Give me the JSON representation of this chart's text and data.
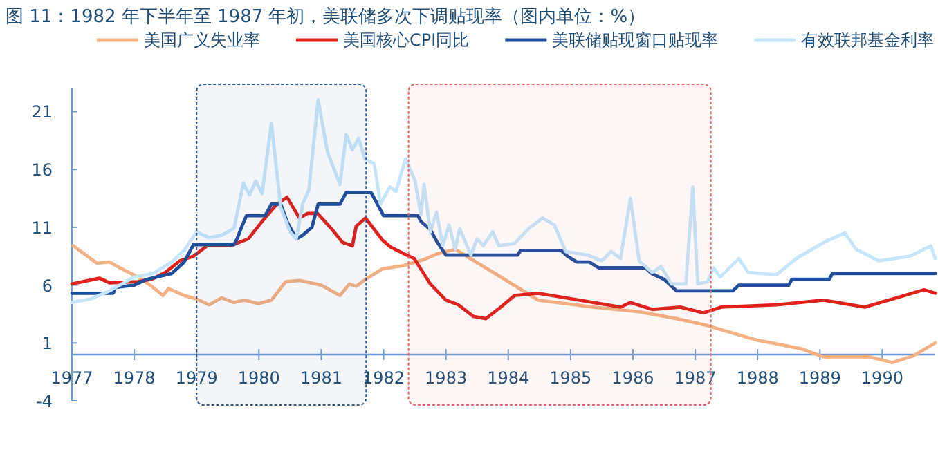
{
  "chart_data": {
    "type": "line",
    "title": "图 11：1982 年下半年至 1987 年初，美联储多次下调贴现率（图内单位：%）",
    "xlim": [
      1977,
      1990.85
    ],
    "xticks": [
      1977,
      1978,
      1979,
      1980,
      1981,
      1982,
      1983,
      1984,
      1985,
      1986,
      1987,
      1988,
      1989,
      1990
    ],
    "ylim": [
      -4,
      23
    ],
    "yticks": [
      -4,
      1,
      6,
      11,
      16,
      21
    ],
    "grid": false,
    "legend": "top",
    "marker": "none",
    "line_style": "solid",
    "bands": [
      {
        "axis": "x",
        "from": 1979,
        "to": 1981.72,
        "color": "#2f5597"
      },
      {
        "axis": "x",
        "from": 1982.4,
        "to": 1987.25,
        "color": "#e06666"
      }
    ],
    "series": [
      {
        "name": "美国广义失业率",
        "color": "#f4b183",
        "x": [
          1977.02,
          1977.4,
          1977.6,
          1977.84,
          1978.06,
          1978.28,
          1978.46,
          1978.55,
          1978.8,
          1979.0,
          1979.2,
          1979.4,
          1979.6,
          1979.77,
          1979.99,
          1980.2,
          1980.43,
          1980.65,
          1981.0,
          1981.3,
          1981.45,
          1981.56,
          1981.71,
          1981.98,
          1982.33,
          1982.64,
          1982.86,
          1983.15,
          1983.88,
          1984.48,
          1985.36,
          1986.1,
          1986.7,
          1987.2,
          1987.95,
          1988.7,
          1989.06,
          1989.8,
          1990.16,
          1990.5,
          1990.85
        ],
        "values": [
          9.4,
          7.9,
          8.0,
          7.3,
          6.7,
          5.9,
          5.1,
          5.7,
          5.1,
          4.8,
          4.3,
          4.9,
          4.5,
          4.7,
          4.4,
          4.7,
          6.3,
          6.4,
          6.0,
          5.1,
          6.1,
          5.9,
          6.5,
          7.4,
          7.7,
          8.2,
          8.7,
          9.1,
          6.7,
          4.7,
          4.1,
          3.7,
          3.1,
          2.5,
          1.3,
          0.5,
          -0.2,
          -0.2,
          -0.7,
          -0.1,
          1.0
        ]
      },
      {
        "name": "美国核心CPI同比",
        "color": "#e0201b",
        "x": [
          1977.0,
          1977.44,
          1977.6,
          1978.06,
          1978.28,
          1978.5,
          1978.73,
          1978.95,
          1979.17,
          1979.54,
          1979.83,
          1980.05,
          1980.27,
          1980.45,
          1980.65,
          1980.78,
          1980.94,
          1981.16,
          1981.34,
          1981.5,
          1981.56,
          1981.71,
          1981.98,
          1982.11,
          1982.33,
          1982.49,
          1982.75,
          1983.0,
          1983.2,
          1983.44,
          1983.64,
          1983.88,
          1984.1,
          1984.48,
          1984.92,
          1985.36,
          1985.8,
          1985.96,
          1986.31,
          1986.76,
          1987.13,
          1987.42,
          1988.3,
          1989.06,
          1989.72,
          1990.23,
          1990.67,
          1990.85
        ],
        "values": [
          6.1,
          6.6,
          6.2,
          6.3,
          6.5,
          7.1,
          8.1,
          8.5,
          9.4,
          9.4,
          10.0,
          11.5,
          12.9,
          13.6,
          11.8,
          12.2,
          12.2,
          10.9,
          9.7,
          9.4,
          11.1,
          11.8,
          9.9,
          9.3,
          8.7,
          8.3,
          6.1,
          4.7,
          4.3,
          3.3,
          3.1,
          4.1,
          5.1,
          5.3,
          4.9,
          4.5,
          4.1,
          4.5,
          3.9,
          4.1,
          3.6,
          4.1,
          4.3,
          4.7,
          4.1,
          4.9,
          5.6,
          5.3
        ]
      },
      {
        "name": "美联储贴现窗口贴现率",
        "color": "#1f4e9c",
        "x": [
          1977.0,
          1977.66,
          1977.7,
          1978.0,
          1978.2,
          1978.6,
          1978.8,
          1978.95,
          1979.6,
          1979.65,
          1979.72,
          1979.8,
          1980.1,
          1980.2,
          1980.35,
          1980.45,
          1980.6,
          1980.7,
          1980.85,
          1980.95,
          1981.3,
          1981.4,
          1981.8,
          1981.9,
          1982.0,
          1982.55,
          1982.6,
          1982.75,
          1982.85,
          1983.0,
          1984.15,
          1984.2,
          1984.85,
          1984.95,
          1985.1,
          1985.3,
          1985.45,
          1986.2,
          1986.3,
          1986.5,
          1986.6,
          1986.7,
          1987.6,
          1987.7,
          1988.5,
          1988.55,
          1989.15,
          1989.2,
          1990.85
        ],
        "values": [
          5.3,
          5.3,
          5.8,
          6.0,
          6.5,
          7.0,
          8.0,
          9.5,
          9.5,
          10.0,
          11.0,
          12.0,
          12.0,
          13.0,
          13.0,
          11.5,
          10.0,
          10.3,
          11.0,
          13.0,
          13.0,
          14.0,
          14.0,
          13.0,
          12.0,
          12.0,
          11.5,
          10.8,
          9.8,
          8.6,
          8.6,
          9.0,
          9.0,
          8.5,
          8.0,
          8.0,
          7.5,
          7.5,
          7.0,
          6.5,
          6.0,
          5.5,
          5.5,
          6.0,
          6.0,
          6.5,
          6.5,
          7.0,
          7.0
        ]
      },
      {
        "name": "有效联邦基金利率",
        "color": "#c5e6fa",
        "x": [
          1977.0,
          1977.3,
          1977.6,
          1978.0,
          1978.3,
          1978.6,
          1978.8,
          1979.0,
          1979.2,
          1979.4,
          1979.6,
          1979.75,
          1979.85,
          1979.95,
          1980.05,
          1980.2,
          1980.35,
          1980.5,
          1980.6,
          1980.7,
          1980.8,
          1980.95,
          1981.1,
          1981.3,
          1981.4,
          1981.5,
          1981.6,
          1981.7,
          1981.85,
          1981.95,
          1982.1,
          1982.2,
          1982.35,
          1982.5,
          1982.6,
          1982.65,
          1982.75,
          1982.85,
          1982.95,
          1983.05,
          1983.15,
          1983.22,
          1983.4,
          1983.5,
          1983.6,
          1983.75,
          1983.85,
          1984.1,
          1984.33,
          1984.55,
          1984.74,
          1984.92,
          1985.27,
          1985.5,
          1985.65,
          1985.8,
          1985.96,
          1986.1,
          1986.31,
          1986.45,
          1986.62,
          1986.85,
          1986.96,
          1987.04,
          1987.2,
          1987.29,
          1987.4,
          1987.7,
          1987.85,
          1988.3,
          1988.62,
          1988.97,
          1989.1,
          1989.4,
          1989.58,
          1989.94,
          1990.45,
          1990.78,
          1990.85
        ],
        "values": [
          4.5,
          4.8,
          5.5,
          6.7,
          7.0,
          8.0,
          9.0,
          10.6,
          10.1,
          10.3,
          10.9,
          14.8,
          13.8,
          15.0,
          13.9,
          20.0,
          12.7,
          10.6,
          10.0,
          13.0,
          14.2,
          22.0,
          17.5,
          14.7,
          19.0,
          17.7,
          18.7,
          16.9,
          16.5,
          13.0,
          14.5,
          14.1,
          16.9,
          15.1,
          12.1,
          14.7,
          10.6,
          12.3,
          9.4,
          11.2,
          9.1,
          10.9,
          8.6,
          10.0,
          9.4,
          10.6,
          9.4,
          9.6,
          10.9,
          11.8,
          11.2,
          8.9,
          8.6,
          8.1,
          8.9,
          8.3,
          13.5,
          8.1,
          7.1,
          7.6,
          6.1,
          6.1,
          14.5,
          6.1,
          6.3,
          7.5,
          6.7,
          8.3,
          7.1,
          6.9,
          8.3,
          9.4,
          9.8,
          10.5,
          9.1,
          8.1,
          8.5,
          9.4,
          8.3
        ]
      }
    ]
  }
}
